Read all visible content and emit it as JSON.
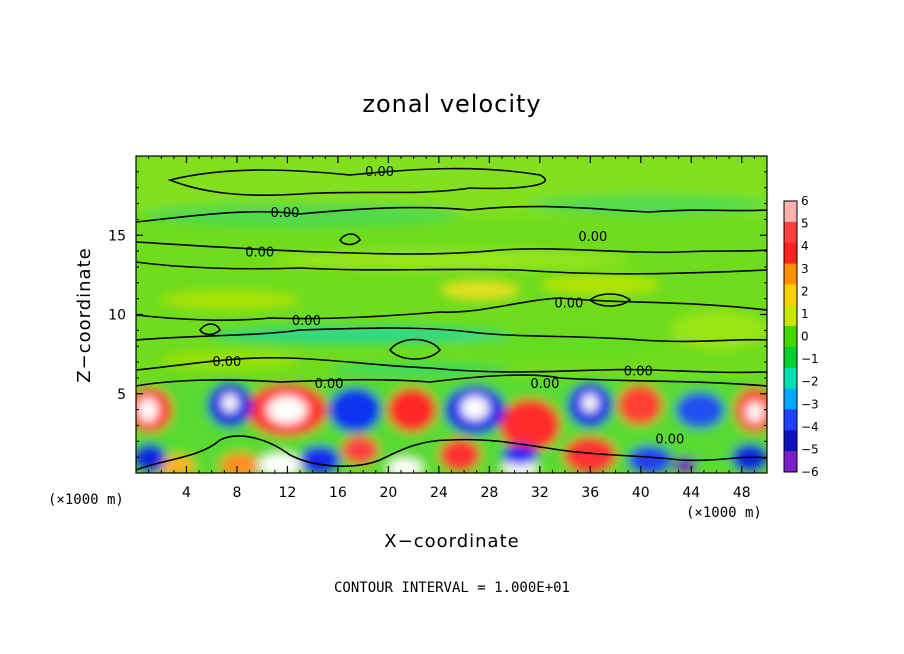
{
  "chart_data": {
    "type": "heatmap",
    "title": "zonal velocity",
    "xlabel": "X−coordinate",
    "ylabel": "Z−coordinate",
    "x_unit": "(×1000 m)",
    "z_unit": "(×1000 m)",
    "xlim": [
      0,
      50
    ],
    "ylim": [
      0,
      20
    ],
    "x_ticks": [
      4,
      8,
      12,
      16,
      20,
      24,
      28,
      32,
      36,
      40,
      44,
      48
    ],
    "y_ticks": [
      5,
      10,
      15
    ],
    "colorbar_levels": [
      "6",
      "5",
      "4",
      "3",
      "2",
      "1",
      "0",
      "−1",
      "−2",
      "−3",
      "−4",
      "−5",
      "−6"
    ],
    "colorbar_colors": [
      "#ffb0b0",
      "#ff4040",
      "#ff2020",
      "#ff9000",
      "#ffd000",
      "#c8e600",
      "#40d800",
      "#00d030",
      "#00e0b0",
      "#00a8ff",
      "#2040ff",
      "#1010c0",
      "#7a20c8"
    ],
    "contour_labels": [
      {
        "x": 19.3,
        "z": 19.0,
        "text": "0.00"
      },
      {
        "x": 11.8,
        "z": 16.4,
        "text": "0.00"
      },
      {
        "x": 9.8,
        "z": 13.9,
        "text": "0.00"
      },
      {
        "x": 36.2,
        "z": 14.9,
        "text": "0.00"
      },
      {
        "x": 34.3,
        "z": 10.7,
        "text": "0.00"
      },
      {
        "x": 13.5,
        "z": 9.6,
        "text": "0.00"
      },
      {
        "x": 7.2,
        "z": 7.0,
        "text": "0.00"
      },
      {
        "x": 15.3,
        "z": 5.6,
        "text": "0.00"
      },
      {
        "x": 32.4,
        "z": 5.6,
        "text": "0.00"
      },
      {
        "x": 39.8,
        "z": 6.4,
        "text": "0.00"
      },
      {
        "x": 42.3,
        "z": 2.1,
        "text": "0.00"
      }
    ],
    "grid": false,
    "legend": "colorbar right",
    "footer": "CONTOUR INTERVAL = 1.000E+01"
  }
}
